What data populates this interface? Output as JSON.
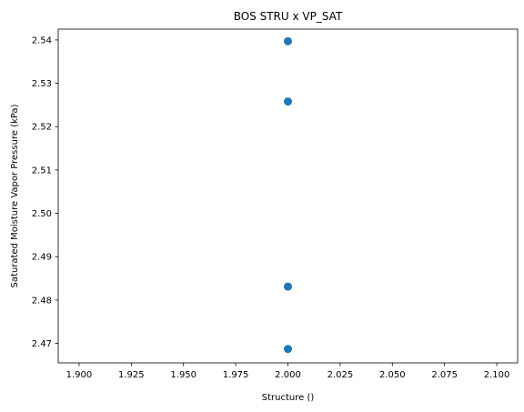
{
  "chart_data": {
    "type": "scatter",
    "title": "BOS STRU x VP_SAT",
    "xlabel": "Structure ()",
    "ylabel": "Saturated Moisture Vapor Pressure (kPa)",
    "xlim": [
      1.89,
      2.11
    ],
    "ylim": [
      2.4655,
      2.5425
    ],
    "x_ticks": [
      "1.900",
      "1.925",
      "1.950",
      "1.975",
      "2.000",
      "2.025",
      "2.050",
      "2.075",
      "2.100"
    ],
    "y_ticks": [
      "2.47",
      "2.48",
      "2.49",
      "2.50",
      "2.51",
      "2.52",
      "2.53",
      "2.54"
    ],
    "grid": false,
    "marker_color": "#1f77b4",
    "points": [
      {
        "x": 2.0,
        "y": 2.5397
      },
      {
        "x": 2.0,
        "y": 2.5258
      },
      {
        "x": 2.0,
        "y": 2.4831
      },
      {
        "x": 2.0,
        "y": 2.4687
      }
    ]
  }
}
